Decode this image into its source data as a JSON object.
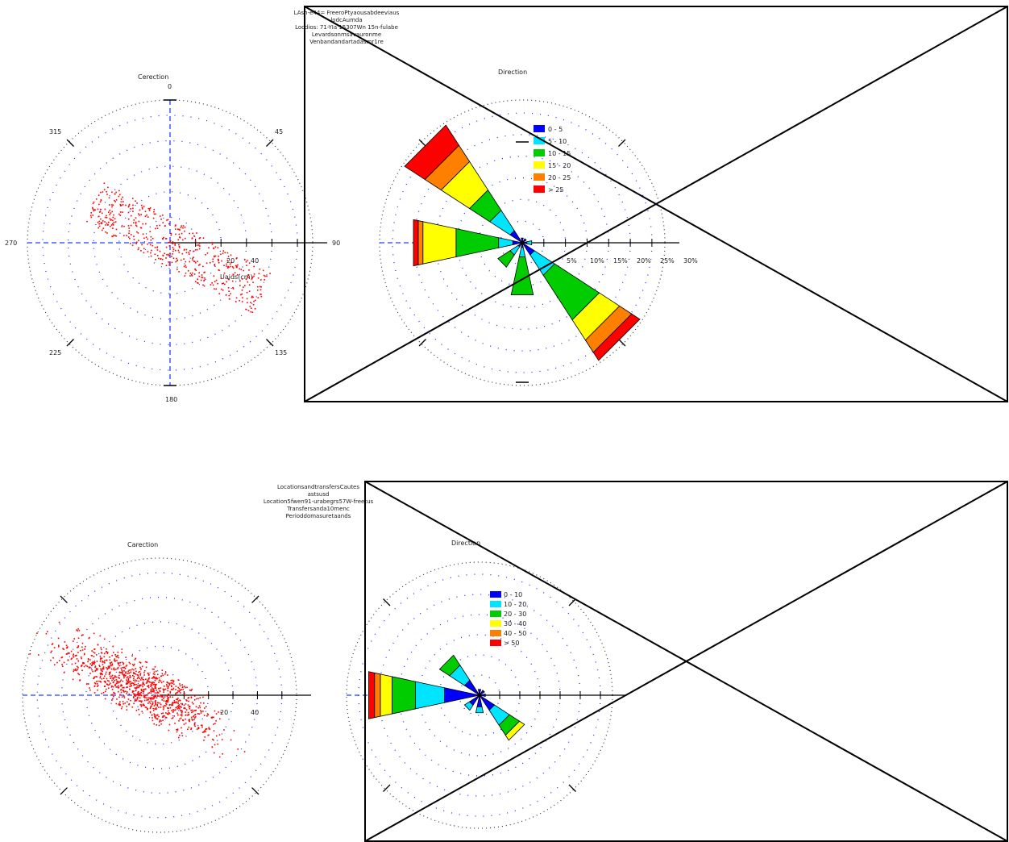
{
  "header_top": {
    "lines": [
      "L.A.s.h.-e.4.4.= F.r.e.e.ro.P.ty.a.o.u.s.a.b.d.e.e.v.i.a.u.s",
      "lo.d.c.A.u.m.d.a.",
      "Lo.c.d.i.o.s.: 7.1.-Y.I.a. 1.5.3.0.7.W.n. 1.5.n.-f.u.l.a.b.e",
      "Le.v.a.r.d.s.o.n.m.s.a.v.a.u.r.o.n.m.e.",
      "V.e.n.b.a.n.d.a.n.d.a.r.t.a.d.a.s.m.r.1.r.e"
    ]
  },
  "header_bottom": {
    "lines": [
      "L.o.c.a.t.i.o.n.s.a.n.d.t.r.a.n.s.f.e.r.s.C.a.u.t.e.s",
      "a.s.t.s.u.s.d.",
      "Lo.c.a.t.i.o.n.5.f.w.e.n.9.1.-u.r.a.b.e.g.r.s.5.7.W.-f.r.e.e.t.u.s",
      "T.r.a.n.s.f.e.r.s.a.n.d.a.1.0.m.e.n.c.",
      "P.e.r.i.o.d.d.o.m.a.s.u.r.e.t.a.a.n.d.s"
    ]
  },
  "chart_data": [
    {
      "type": "scatter",
      "title": "C.e.r.e.c.t.i.o.n",
      "compass": {
        "N": "0",
        "E": "90",
        "S": "180",
        "W": "270"
      },
      "bearing_labels": [
        "0",
        "45",
        "90",
        "135",
        "180",
        "225",
        "270",
        "315"
      ],
      "radial_ticks": [
        "20",
        "40"
      ],
      "ylabel": "U.a.i.d.s.(c.m.)",
      "color": "#ff0000",
      "points_note": "scattered velocity vectors oriented NW-SE"
    },
    {
      "type": "rose",
      "title": "D.i.r.e.c.t.i.o.n",
      "radial_ticks": [
        "5%",
        "10%",
        "15%",
        "20%",
        "25%",
        "30%"
      ],
      "legend": [
        {
          "label": "0 - 5",
          "color": "#0000ff"
        },
        {
          "label": "5 - 10",
          "color": "#00e5ff"
        },
        {
          "label": "10 - 15",
          "color": "#00cc00"
        },
        {
          "label": "15 - 20",
          "color": "#ffff00"
        },
        {
          "label": "20 - 25",
          "color": "#ff7f00"
        },
        {
          "label": "> 25",
          "color": "#ff0000"
        }
      ],
      "sectors": [
        {
          "dir": 315,
          "values": [
            3,
            8,
            13,
            20,
            24,
            29
          ]
        },
        {
          "dir": 270,
          "values": [
            2,
            5,
            14,
            21,
            22,
            23
          ]
        },
        {
          "dir": 135,
          "values": [
            3,
            8,
            19,
            24,
            27,
            29
          ]
        },
        {
          "dir": 180,
          "values": [
            1,
            3,
            11,
            11,
            11,
            11
          ]
        },
        {
          "dir": 225,
          "values": [
            1,
            3,
            6,
            6,
            6,
            6
          ]
        },
        {
          "dir": 90,
          "values": [
            1,
            2,
            2,
            2,
            2,
            2
          ]
        },
        {
          "dir": 0,
          "values": [
            1,
            1,
            1,
            1,
            1,
            1
          ]
        },
        {
          "dir": 45,
          "values": [
            1,
            1,
            1,
            1,
            1,
            1
          ]
        }
      ]
    },
    {
      "type": "scatter",
      "title": "C.a.r.e.c.t.i.o.n",
      "radial_ticks": [
        "20",
        "40"
      ],
      "color": "#ff0000"
    },
    {
      "type": "rose",
      "title": "D.i.r.e.c.t.i.o.n",
      "legend": [
        {
          "label": "0 - 10",
          "color": "#0000ff"
        },
        {
          "label": "10 - 20",
          "color": "#00e5ff"
        },
        {
          "label": "20 - 30",
          "color": "#00cc00"
        },
        {
          "label": "30 - 40",
          "color": "#ffff00"
        },
        {
          "label": "40 - 50",
          "color": "#ff7f00"
        },
        {
          "label": "> 50",
          "color": "#ff0000"
        }
      ],
      "sectors": [
        {
          "dir": 270,
          "values": [
            6,
            11,
            15,
            17,
            18,
            19
          ]
        },
        {
          "dir": 315,
          "values": [
            3,
            6,
            8,
            8,
            8,
            8
          ]
        },
        {
          "dir": 135,
          "values": [
            3,
            6,
            8,
            9,
            9,
            9
          ]
        },
        {
          "dir": 180,
          "values": [
            2,
            3,
            3,
            3,
            3,
            3
          ]
        },
        {
          "dir": 225,
          "values": [
            2,
            3,
            3,
            3,
            3,
            3
          ]
        },
        {
          "dir": 45,
          "values": [
            1,
            1,
            1,
            1,
            1,
            1
          ]
        },
        {
          "dir": 90,
          "values": [
            1,
            1,
            1,
            1,
            1,
            1
          ]
        },
        {
          "dir": 0,
          "values": [
            1,
            1,
            1,
            1,
            1,
            1
          ]
        }
      ]
    }
  ]
}
